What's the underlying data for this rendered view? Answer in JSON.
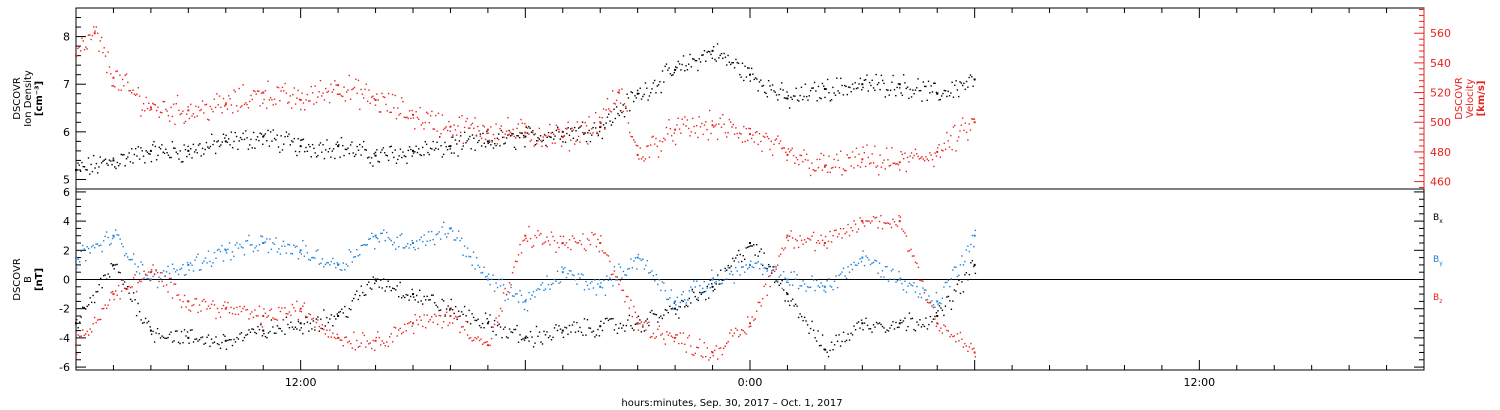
{
  "colors": {
    "black": "#000000",
    "red": "#e8221d",
    "blue": "#1b7fd9",
    "frame": "#000000"
  },
  "x_axis": {
    "title": "hours:minutes, Sep. 30, 2017 – Oct. 1, 2017",
    "range_hours": [
      -18.0,
      18.0
    ],
    "tick_labels": [
      {
        "hours": -12,
        "label": "12:00"
      },
      {
        "hours": 0,
        "label": "0:00"
      },
      {
        "hours": 12,
        "label": "12:00"
      }
    ],
    "data_end_hours": 6.0
  },
  "chart_data": [
    {
      "type": "scatter",
      "panel": "top",
      "left_label": [
        "DSCOVR",
        "Ion Density",
        "[cm⁻³]"
      ],
      "right_label": [
        "DSCOVR",
        "Velocity",
        "[km/s]"
      ],
      "left_ylim": [
        4.8,
        8.6
      ],
      "left_ticks": [
        5,
        6,
        7,
        8
      ],
      "right_ylim": [
        455,
        577
      ],
      "right_ticks": [
        460,
        480,
        500,
        520,
        540,
        560
      ],
      "series": [
        {
          "axis": "left",
          "color": "black",
          "x": [
            -18.0,
            -17.0,
            -16.0,
            -15.0,
            -14.0,
            -13.0,
            -12.0,
            -11.0,
            -10.0,
            -9.0,
            -8.0,
            -7.0,
            -6.0,
            -5.0,
            -4.0,
            -3.0,
            -2.0,
            -1.0,
            0.0,
            1.0,
            2.0,
            3.0,
            4.0,
            5.0,
            6.0
          ],
          "y": [
            5.2,
            5.4,
            5.6,
            5.6,
            5.8,
            5.9,
            5.7,
            5.7,
            5.5,
            5.6,
            5.7,
            5.8,
            5.9,
            6.0,
            6.1,
            6.8,
            7.3,
            7.7,
            7.2,
            6.7,
            6.9,
            7.0,
            7.0,
            6.8,
            7.1
          ]
        },
        {
          "axis": "right",
          "color": "red",
          "x": [
            -18.0,
            -17.5,
            -17.0,
            -16.0,
            -15.0,
            -14.0,
            -13.0,
            -12.0,
            -11.0,
            -10.0,
            -9.0,
            -8.0,
            -7.0,
            -6.0,
            -5.0,
            -4.0,
            -3.5,
            -3.0,
            -2.0,
            -1.0,
            0.0,
            1.0,
            2.0,
            3.0,
            4.0,
            5.0,
            6.0
          ],
          "y": [
            545,
            560,
            530,
            510,
            508,
            512,
            520,
            515,
            525,
            515,
            505,
            497,
            495,
            493,
            490,
            500,
            520,
            478,
            495,
            498,
            492,
            478,
            470,
            475,
            473,
            480,
            500
          ]
        }
      ]
    },
    {
      "type": "scatter",
      "panel": "bottom",
      "left_label": [
        "DSCOVR",
        "B",
        "[nT]"
      ],
      "ylim": [
        -6.2,
        6.2
      ],
      "ticks": [
        -6,
        -4,
        -2,
        0,
        2,
        4,
        6
      ],
      "zero_line": true,
      "legend": [
        {
          "label": "B",
          "subscript": "x",
          "color": "black"
        },
        {
          "label": "B",
          "subscript": "y",
          "color": "blue"
        },
        {
          "label": "B",
          "subscript": "z",
          "color": "red"
        }
      ],
      "series": [
        {
          "name": "Bx",
          "color": "black",
          "x": [
            -18.0,
            -17.0,
            -16.0,
            -15.0,
            -14.0,
            -13.0,
            -12.0,
            -11.0,
            -10.0,
            -9.0,
            -8.0,
            -7.0,
            -6.0,
            -5.0,
            -4.0,
            -3.0,
            -2.0,
            -1.0,
            0.0,
            1.0,
            2.0,
            3.0,
            4.0,
            5.0,
            6.0
          ],
          "y": [
            -3.0,
            1.0,
            -3.5,
            -4.0,
            -4.2,
            -3.5,
            -3.0,
            -2.5,
            0.0,
            -1.0,
            -2.0,
            -3.0,
            -4.0,
            -3.5,
            -3.2,
            -3.0,
            -2.0,
            -0.5,
            2.5,
            -1.0,
            -4.8,
            -3.0,
            -3.0,
            -2.5,
            1.0
          ]
        },
        {
          "name": "By",
          "color": "blue",
          "x": [
            -18.0,
            -17.0,
            -16.0,
            -15.0,
            -14.0,
            -13.0,
            -12.0,
            -11.0,
            -10.0,
            -9.0,
            -8.0,
            -7.0,
            -6.0,
            -5.0,
            -4.0,
            -3.0,
            -2.0,
            -1.0,
            0.0,
            1.0,
            2.0,
            3.0,
            4.0,
            5.0,
            6.0
          ],
          "y": [
            1.5,
            3.0,
            0.0,
            1.0,
            2.0,
            2.5,
            2.0,
            1.0,
            3.0,
            2.5,
            3.5,
            0.0,
            -1.5,
            0.5,
            -0.5,
            1.5,
            -1.5,
            0.0,
            1.0,
            0.0,
            -0.5,
            1.5,
            0.0,
            -1.5,
            3.0
          ]
        },
        {
          "name": "Bz",
          "color": "red",
          "x": [
            -18.0,
            -17.0,
            -16.0,
            -15.0,
            -14.0,
            -13.0,
            -12.0,
            -11.0,
            -10.0,
            -9.0,
            -8.0,
            -7.0,
            -6.0,
            -5.0,
            -4.0,
            -3.0,
            -2.0,
            -1.0,
            0.0,
            1.0,
            2.0,
            3.0,
            4.0,
            5.0,
            6.0
          ],
          "y": [
            -4.5,
            -1.0,
            0.5,
            -1.5,
            -2.0,
            -2.5,
            -2.0,
            -4.0,
            -4.2,
            -3.0,
            -2.5,
            -4.5,
            3.0,
            2.5,
            2.5,
            -3.0,
            -4.0,
            -5.0,
            -3.0,
            3.0,
            2.5,
            4.0,
            4.0,
            -3.0,
            -5.0
          ]
        }
      ]
    }
  ]
}
